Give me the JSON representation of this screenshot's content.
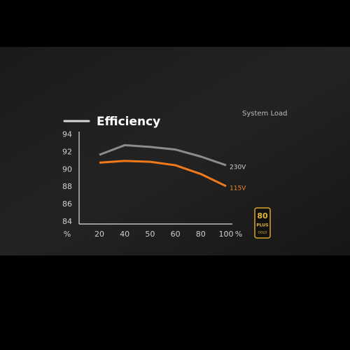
{
  "chart_data": {
    "type": "line",
    "title": "Efficiency",
    "subtitle": "System Load",
    "categories": [
      "20",
      "40",
      "50",
      "60",
      "80",
      "100"
    ],
    "series": [
      {
        "name": "230V",
        "color": "#8c8c8c",
        "values": [
          91.7,
          92.8,
          92.6,
          92.3,
          91.5,
          90.5
        ]
      },
      {
        "name": "115V",
        "color": "#f07a1a",
        "values": [
          90.8,
          91.0,
          90.9,
          90.5,
          89.5,
          88.1
        ]
      }
    ],
    "ylim": [
      83.8,
      94.2
    ],
    "yticks": [
      84,
      86,
      88,
      90,
      92,
      94
    ],
    "y_unit_label": "%",
    "x_unit_label": "%",
    "badge": {
      "number": "80",
      "word": "PLUS",
      "grade": "GOLD"
    }
  }
}
